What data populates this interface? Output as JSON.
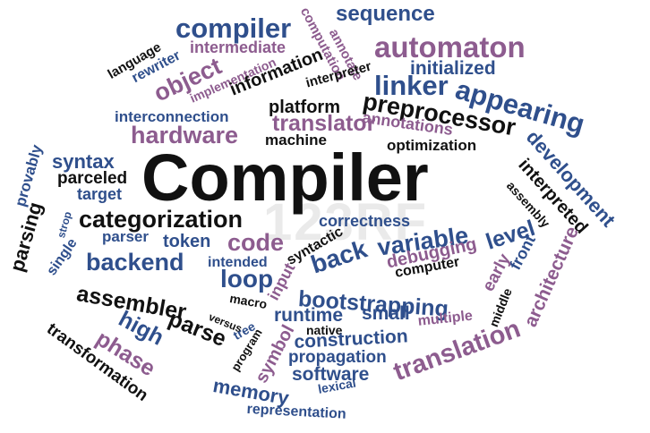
{
  "colors": {
    "black": "#111111",
    "blue": "#2f4f8c",
    "mauve": "#8d5c8f",
    "lightblue": "#5a77ae"
  },
  "watermark": "123RF",
  "words": [
    {
      "id": "compiler-main",
      "text": "Compiler",
      "color": "black"
    },
    {
      "id": "compiler-top",
      "text": "compiler",
      "color": "blue"
    },
    {
      "id": "sequence",
      "text": "sequence",
      "color": "blue"
    },
    {
      "id": "intermediate",
      "text": "intermediate",
      "color": "mauve"
    },
    {
      "id": "annotate",
      "text": "annotate",
      "color": "mauve"
    },
    {
      "id": "computation",
      "text": "computation",
      "color": "mauve"
    },
    {
      "id": "automaton",
      "text": "automaton",
      "color": "mauve"
    },
    {
      "id": "language",
      "text": "language",
      "color": "black"
    },
    {
      "id": "rewriter",
      "text": "rewriter",
      "color": "blue"
    },
    {
      "id": "object",
      "text": "object",
      "color": "mauve"
    },
    {
      "id": "implementation",
      "text": "implementation",
      "color": "mauve"
    },
    {
      "id": "information",
      "text": "information",
      "color": "black"
    },
    {
      "id": "interpreter",
      "text": "interpreter",
      "color": "black"
    },
    {
      "id": "initialized",
      "text": "initialized",
      "color": "blue"
    },
    {
      "id": "linker",
      "text": "linker",
      "color": "blue"
    },
    {
      "id": "appearing",
      "text": "appearing",
      "color": "blue"
    },
    {
      "id": "preprocessor",
      "text": "preprocessor",
      "color": "black"
    },
    {
      "id": "platform",
      "text": "platform",
      "color": "black"
    },
    {
      "id": "annotations",
      "text": "annotations",
      "color": "mauve"
    },
    {
      "id": "interconnection",
      "text": "interconnection",
      "color": "blue"
    },
    {
      "id": "translator",
      "text": "translator",
      "color": "mauve"
    },
    {
      "id": "hardware",
      "text": "hardware",
      "color": "mauve"
    },
    {
      "id": "machine",
      "text": "machine",
      "color": "black"
    },
    {
      "id": "optimization",
      "text": "optimization",
      "color": "black"
    },
    {
      "id": "development",
      "text": "development",
      "color": "blue"
    },
    {
      "id": "syntax",
      "text": "syntax",
      "color": "blue"
    },
    {
      "id": "provably",
      "text": "provably",
      "color": "blue"
    },
    {
      "id": "parceled",
      "text": "parceled",
      "color": "black"
    },
    {
      "id": "target",
      "text": "target",
      "color": "blue"
    },
    {
      "id": "interpreted",
      "text": "interpreted",
      "color": "black"
    },
    {
      "id": "assembly",
      "text": "assembly",
      "color": "black"
    },
    {
      "id": "strop",
      "text": "strop",
      "color": "blue"
    },
    {
      "id": "categorization",
      "text": "categorization",
      "color": "black"
    },
    {
      "id": "correctness",
      "text": "correctness",
      "color": "blue"
    },
    {
      "id": "parsing",
      "text": "parsing",
      "color": "black"
    },
    {
      "id": "single",
      "text": "single",
      "color": "blue"
    },
    {
      "id": "parser",
      "text": "parser",
      "color": "blue"
    },
    {
      "id": "token",
      "text": "token",
      "color": "blue"
    },
    {
      "id": "code",
      "text": "code",
      "color": "mauve"
    },
    {
      "id": "syntactic",
      "text": "syntactic",
      "color": "black"
    },
    {
      "id": "back",
      "text": "back",
      "color": "blue"
    },
    {
      "id": "variable",
      "text": "variable",
      "color": "blue"
    },
    {
      "id": "level",
      "text": "level",
      "color": "blue"
    },
    {
      "id": "front",
      "text": "front",
      "color": "blue"
    },
    {
      "id": "architecture",
      "text": "architecture",
      "color": "mauve"
    },
    {
      "id": "backend",
      "text": "backend",
      "color": "blue"
    },
    {
      "id": "intended",
      "text": "intended",
      "color": "blue"
    },
    {
      "id": "input",
      "text": "input",
      "color": "mauve"
    },
    {
      "id": "debugging",
      "text": "debugging",
      "color": "mauve"
    },
    {
      "id": "early",
      "text": "early",
      "color": "mauve"
    },
    {
      "id": "computer",
      "text": "computer",
      "color": "black"
    },
    {
      "id": "loop",
      "text": "loop",
      "color": "blue"
    },
    {
      "id": "assembler",
      "text": "assembler",
      "color": "black"
    },
    {
      "id": "macro",
      "text": "macro",
      "color": "black"
    },
    {
      "id": "bootstrapping",
      "text": "bootstrapping",
      "color": "blue"
    },
    {
      "id": "middle",
      "text": "middle",
      "color": "black"
    },
    {
      "id": "high",
      "text": "high",
      "color": "blue"
    },
    {
      "id": "parse",
      "text": "parse",
      "color": "black"
    },
    {
      "id": "versus",
      "text": "versus",
      "color": "black"
    },
    {
      "id": "tree",
      "text": "tree",
      "color": "blue"
    },
    {
      "id": "runtime",
      "text": "runtime",
      "color": "blue"
    },
    {
      "id": "small",
      "text": "small",
      "color": "blue"
    },
    {
      "id": "multiple",
      "text": "multiple",
      "color": "mauve"
    },
    {
      "id": "phase",
      "text": "phase",
      "color": "mauve"
    },
    {
      "id": "native",
      "text": "native",
      "color": "black"
    },
    {
      "id": "construction",
      "text": "construction",
      "color": "blue"
    },
    {
      "id": "transformation",
      "text": "transformation",
      "color": "black"
    },
    {
      "id": "program",
      "text": "program",
      "color": "black"
    },
    {
      "id": "symbol",
      "text": "symbol",
      "color": "mauve"
    },
    {
      "id": "propagation",
      "text": "propagation",
      "color": "blue"
    },
    {
      "id": "translation",
      "text": "translation",
      "color": "mauve"
    },
    {
      "id": "software",
      "text": "software",
      "color": "blue"
    },
    {
      "id": "lexical",
      "text": "lexical",
      "color": "blue"
    },
    {
      "id": "memory",
      "text": "memory",
      "color": "blue"
    },
    {
      "id": "representation",
      "text": "representation",
      "color": "blue"
    }
  ]
}
